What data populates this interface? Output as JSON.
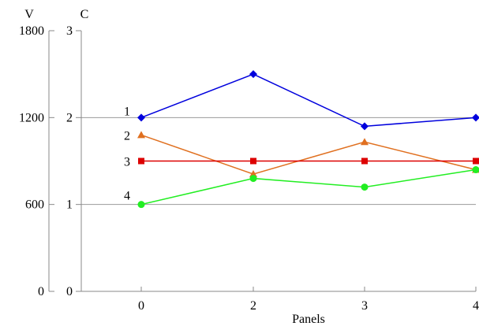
{
  "chart_data": {
    "type": "line",
    "title": "",
    "xlabel": "Panels",
    "x_categories": [
      "0",
      "2",
      "3",
      "4"
    ],
    "left_axis_primary": {
      "label": "V",
      "range": [
        0,
        1800
      ],
      "ticks": [
        "0",
        "600",
        "1200",
        "1800"
      ]
    },
    "left_axis_secondary": {
      "label": "C",
      "range": [
        0,
        3
      ],
      "ticks": [
        "0",
        "1",
        "2",
        "3"
      ]
    },
    "grid": "horizontal",
    "series": [
      {
        "name": "1",
        "marker": "diamond",
        "color": "#0000dd",
        "values": [
          2.0,
          2.5,
          1.9,
          2.0
        ]
      },
      {
        "name": "2",
        "marker": "triangle",
        "color": "#e07020",
        "values": [
          1.8,
          1.35,
          1.72,
          1.4
        ]
      },
      {
        "name": "3",
        "marker": "square",
        "color": "#dd0000",
        "values": [
          1.5,
          1.5,
          1.5,
          1.5
        ]
      },
      {
        "name": "4",
        "marker": "circle",
        "color": "#22ee22",
        "values": [
          1.0,
          1.3,
          1.2,
          1.4
        ]
      }
    ]
  }
}
